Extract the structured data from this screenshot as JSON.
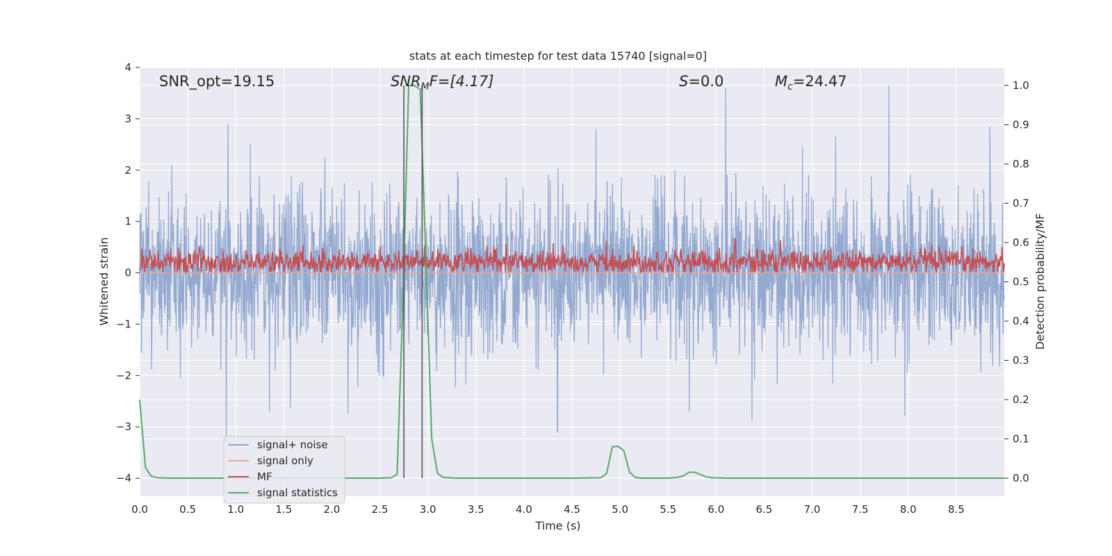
{
  "chart_data": {
    "type": "line",
    "title": "stats at each timestep for test data 15740 [signal=0]",
    "xlabel": "Time (s)",
    "ylabel": "Whitened strain",
    "y2label": "Detection probability/MF",
    "xlim": [
      0.0,
      9.0
    ],
    "ylim": [
      -4.35,
      4.0
    ],
    "y2lim": [
      -0.046,
      1.046
    ],
    "x_ticks": [
      "0.0",
      "0.5",
      "1.0",
      "1.5",
      "2.0",
      "2.5",
      "3.0",
      "3.5",
      "4.0",
      "4.5",
      "5.0",
      "5.5",
      "6.0",
      "6.5",
      "7.0",
      "7.5",
      "8.0",
      "8.5"
    ],
    "y_ticks": [
      "−4",
      "−3",
      "−2",
      "−1",
      "0",
      "1",
      "2",
      "3",
      "4"
    ],
    "y2_ticks": [
      "0.0",
      "0.1",
      "0.2",
      "0.3",
      "0.4",
      "0.5",
      "0.6",
      "0.7",
      "0.8",
      "0.9",
      "1.0"
    ],
    "grid": true,
    "legend_position": "lower-left",
    "annotations": {
      "snr_opt": "SNR_opt=19.15",
      "snr_mf_main": "SNR",
      "snr_mf_sub": "M",
      "snr_mf_rest": "F=[4.17]",
      "s_italic": "S",
      "s_rest": "=0.0",
      "mc_italic": "M",
      "mc_sub": "c",
      "mc_rest": "=24.47"
    },
    "vlines": [
      2.75,
      2.94
    ],
    "series": [
      {
        "name": "signal+ noise",
        "color": "#8fa5cd",
        "description_axis": "left",
        "amplitude_std": 0.75,
        "spike_peaks": [
          [
            0.92,
            2.9
          ],
          [
            0.9,
            -3.3
          ],
          [
            1.15,
            2.5
          ],
          [
            4.35,
            -3.1
          ],
          [
            4.75,
            2.8
          ],
          [
            6.1,
            3.6
          ],
          [
            7.8,
            3.65
          ],
          [
            8.85,
            2.85
          ],
          [
            5.72,
            -2.7
          ],
          [
            1.35,
            -2.7
          ],
          [
            2.17,
            -2.75
          ],
          [
            6.9,
            2.45
          ]
        ]
      },
      {
        "name": "signal only",
        "color": "#e8a893",
        "description_axis": "left",
        "x": [
          0.0,
          9.0
        ],
        "y": [
          0.0,
          0.0
        ]
      },
      {
        "name": "MF",
        "color": "#c44e52",
        "description_axis": "right",
        "mean": 0.55,
        "amplitude": 0.03,
        "peak": [
          6.2,
          0.61
        ]
      },
      {
        "name": "signal statistics",
        "color": "#55a868",
        "description_axis": "right",
        "x": [
          0.0,
          0.06,
          0.12,
          0.18,
          0.3,
          0.6,
          1.0,
          1.5,
          2.0,
          2.5,
          2.62,
          2.68,
          2.74,
          2.8,
          2.86,
          2.92,
          2.98,
          3.04,
          3.1,
          3.16,
          3.3,
          3.6,
          4.0,
          4.5,
          4.8,
          4.86,
          4.92,
          4.98,
          5.04,
          5.1,
          5.16,
          5.22,
          5.3,
          5.5,
          5.6,
          5.66,
          5.72,
          5.78,
          5.84,
          5.9,
          5.96,
          6.1,
          6.5,
          7.0,
          7.5,
          8.0,
          8.5,
          9.0
        ],
        "y": [
          0.2,
          0.027,
          0.005,
          0.001,
          0.0,
          0.0,
          0.0,
          0.0,
          0.0,
          0.0,
          0.001,
          0.01,
          0.45,
          1.0,
          1.0,
          0.99,
          0.55,
          0.1,
          0.012,
          0.002,
          0.0,
          0.0,
          0.0,
          0.0,
          0.001,
          0.012,
          0.08,
          0.081,
          0.07,
          0.015,
          0.002,
          0.0,
          0.0,
          0.0,
          0.002,
          0.006,
          0.015,
          0.015,
          0.009,
          0.003,
          0.001,
          0.0,
          0.0,
          0.0,
          0.0,
          0.0,
          0.0,
          0.0
        ]
      }
    ]
  }
}
